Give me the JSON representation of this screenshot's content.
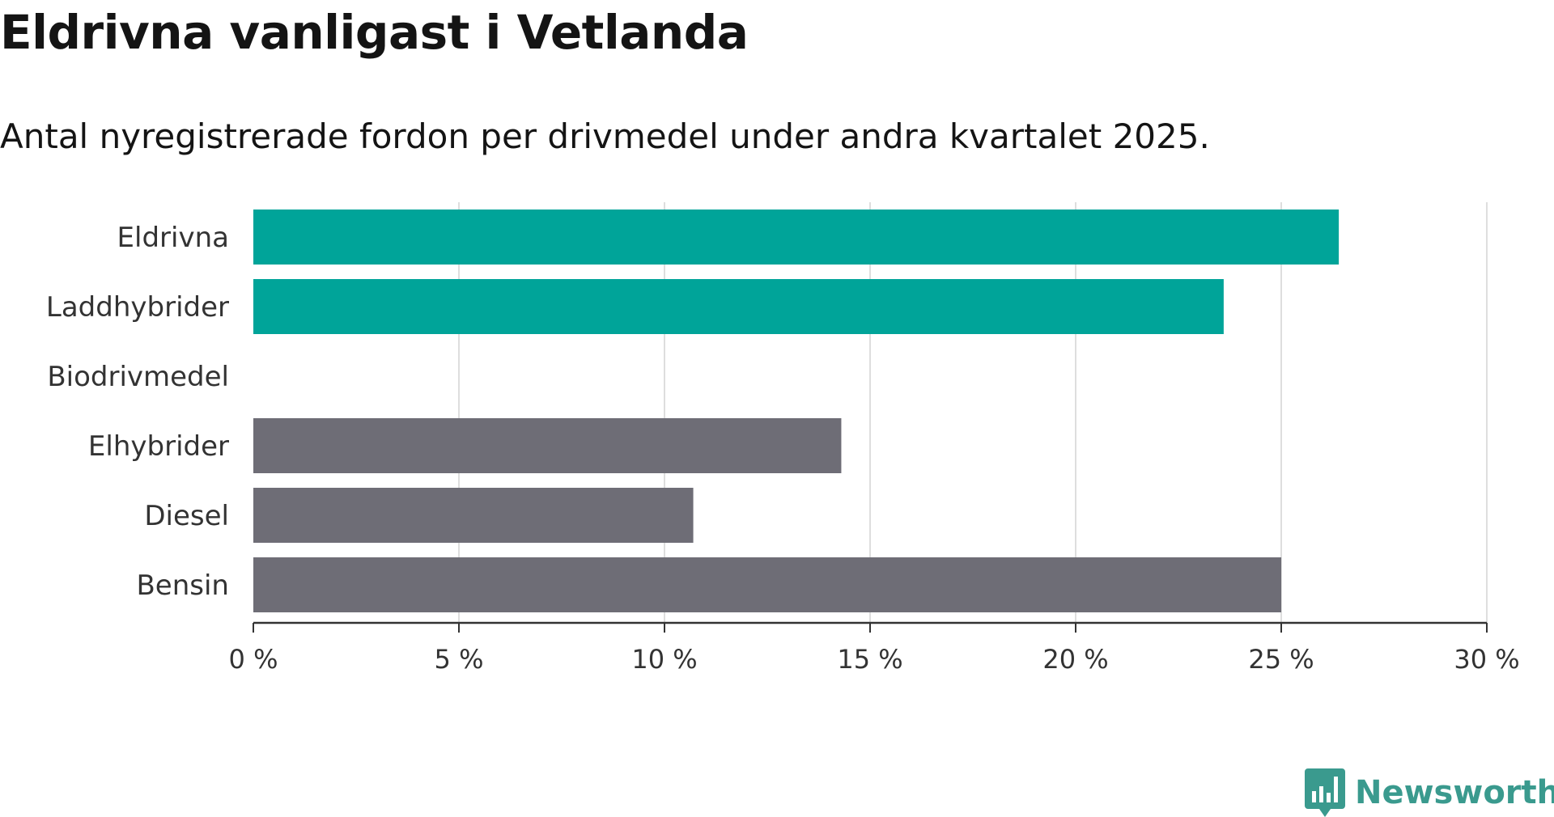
{
  "header": {
    "title": "Eldrivna vanligast i Vetlanda",
    "subtitle": "Antal nyregistrerade fordon per drivmedel under andra kvartalet 2025."
  },
  "brand": {
    "name": "Newsworthy",
    "icon": "newsworthy-logo-icon",
    "color": "#3a9a8e"
  },
  "chart_data": {
    "type": "bar",
    "orientation": "horizontal",
    "categories": [
      "Eldrivna",
      "Laddhybrider",
      "Biodrivmedel",
      "Elhybrider",
      "Diesel",
      "Bensin"
    ],
    "values": [
      26.4,
      23.6,
      0,
      14.3,
      10.7,
      25.0
    ],
    "colors": [
      "#00a499",
      "#00a499",
      "#00a499",
      "#6e6d76",
      "#6e6d76",
      "#6e6d76"
    ],
    "xlim": [
      0,
      30
    ],
    "xticks": [
      0,
      5,
      10,
      15,
      20,
      25,
      30
    ],
    "xtick_labels": [
      "0 %",
      "5 %",
      "10 %",
      "15 %",
      "20 %",
      "25 %",
      "30 %"
    ],
    "grid": "vertical"
  }
}
